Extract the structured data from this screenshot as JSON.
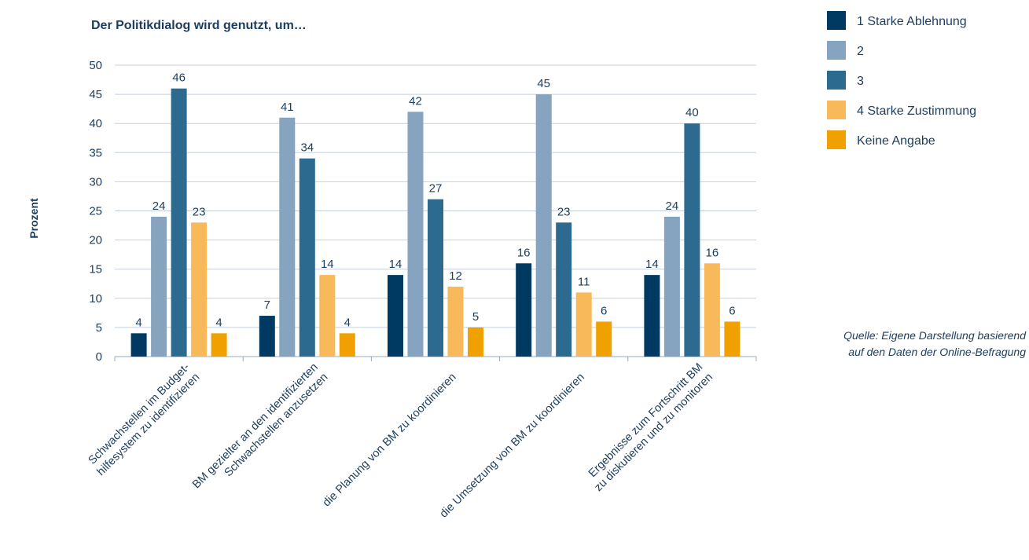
{
  "chart_data": {
    "type": "bar",
    "title": "Der Politikdialog wird genutzt, um…",
    "ylabel": "Prozent",
    "xlabel": "",
    "ylim": [
      0,
      50
    ],
    "yticks": [
      "0",
      "5",
      "10",
      "15",
      "20",
      "25",
      "30",
      "35",
      "40",
      "45",
      "50"
    ],
    "grid": true,
    "legend_position": "top-right",
    "categories": [
      [
        "Schwachstellen im Budget-",
        "hilfesystem zu identifizieren"
      ],
      [
        "BM gezielter an den identifizierten",
        "Schwachstellen anzusetzen"
      ],
      [
        "die Planung von BM zu koordinieren"
      ],
      [
        "die Umsetzung von BM zu koordinieren"
      ],
      [
        "Ergebnisse zum Fortschritt BM",
        "zu diskutieren und zu monitoren"
      ]
    ],
    "series": [
      {
        "name": "1 Starke Ablehnung",
        "color": "#003a63",
        "values": [
          4,
          7,
          14,
          16,
          14
        ]
      },
      {
        "name": "2",
        "color": "#86a3bf",
        "values": [
          24,
          41,
          42,
          45,
          24
        ]
      },
      {
        "name": "3",
        "color": "#2c6a90",
        "values": [
          46,
          34,
          27,
          23,
          40
        ]
      },
      {
        "name": "4 Starke Zustimmung",
        "color": "#f7b95a",
        "values": [
          23,
          14,
          12,
          11,
          16
        ]
      },
      {
        "name": "Keine Angabe",
        "color": "#f0a100",
        "values": [
          4,
          4,
          5,
          6,
          6
        ]
      }
    ],
    "source": [
      "Quelle: Eigene Darstellung basierend",
      "auf den Daten der Online-Befragung"
    ]
  }
}
